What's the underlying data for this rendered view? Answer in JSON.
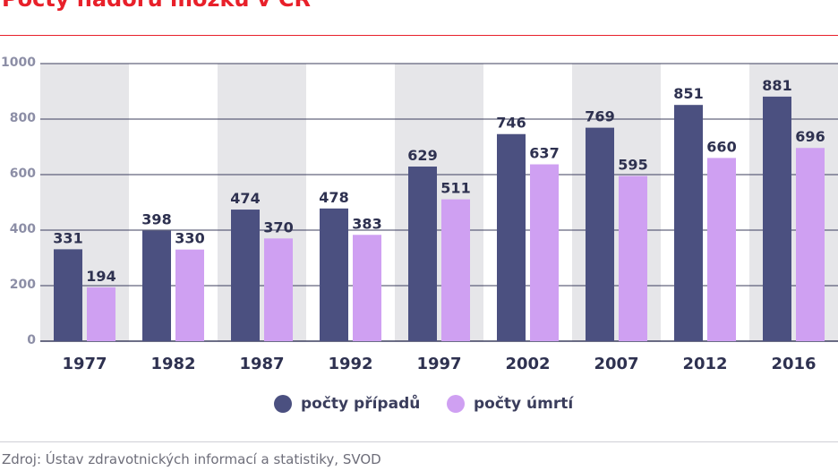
{
  "header": {
    "title": "Počty nádorů mozku v ČR"
  },
  "colors": {
    "title": "#e8202a",
    "cases": "#4b5080",
    "deaths": "#cfa0f2",
    "band": "#e6e6e9",
    "axis_text": "#8c8ea6"
  },
  "chart_data": {
    "type": "bar",
    "title": "Počty nádorů mozku v ČR",
    "categories": [
      "1977",
      "1982",
      "1987",
      "1992",
      "1997",
      "2002",
      "2007",
      "2012",
      "2016"
    ],
    "series": [
      {
        "name": "počty případů",
        "values": [
          331,
          398,
          474,
          478,
          629,
          746,
          769,
          851,
          881
        ],
        "color": "#4b5080"
      },
      {
        "name": "počty úmrtí",
        "values": [
          194,
          330,
          370,
          383,
          511,
          637,
          595,
          660,
          696
        ],
        "color": "#cfa0f2"
      }
    ],
    "yticks": [
      0,
      200,
      400,
      600,
      800,
      1000
    ],
    "ylim": [
      0,
      1000
    ],
    "xlabel": "",
    "ylabel": "",
    "grid": true,
    "legend_position": "bottom"
  },
  "legend": {
    "cases_label": "počty případů",
    "deaths_label": "počty úmrtí"
  },
  "footer": {
    "source": "Zdroj: Ústav zdravotnických informací a statistiky, SVOD"
  }
}
